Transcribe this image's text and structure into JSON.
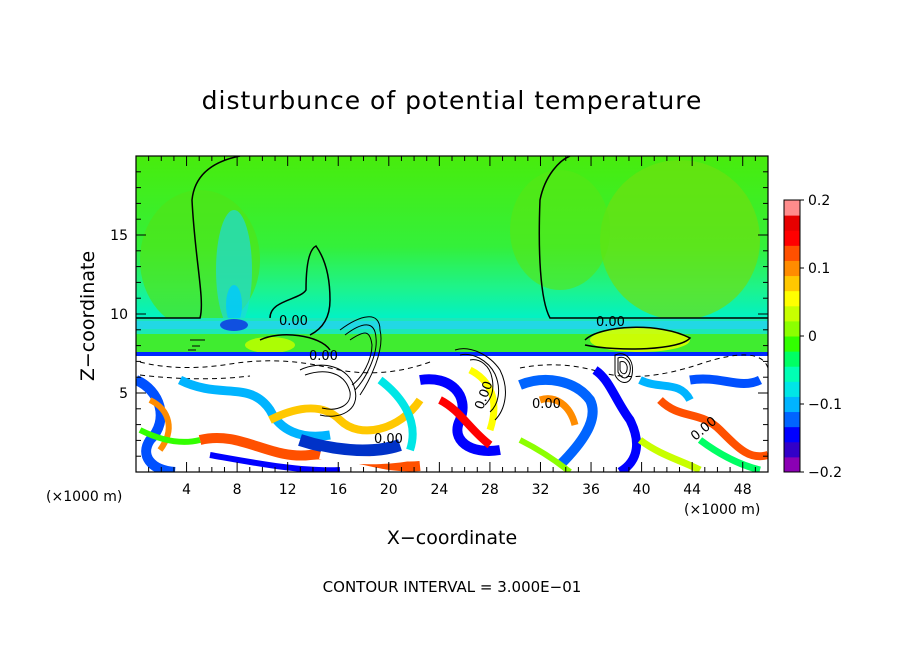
{
  "chart_data": {
    "type": "heatmap",
    "title": "disturbunce of potential temperature",
    "xlabel": "X−coordinate",
    "ylabel": "Z−coordinate",
    "x_unit_label": "(×1000 m)",
    "x_ticks": [
      "4",
      "8",
      "12",
      "16",
      "20",
      "24",
      "28",
      "32",
      "36",
      "40",
      "44",
      "48"
    ],
    "x_tick_values": [
      4,
      8,
      12,
      16,
      20,
      24,
      28,
      32,
      36,
      40,
      44,
      48
    ],
    "y_ticks": [
      "5",
      "10",
      "15"
    ],
    "y_tick_values": [
      5,
      10,
      15
    ],
    "xlim": [
      0,
      50
    ],
    "ylim": [
      0,
      20
    ],
    "colorbar": {
      "ticks": [
        "0.2",
        "0.1",
        "0",
        "−0.1",
        "−0.2"
      ],
      "tick_values": [
        0.2,
        0.1,
        0,
        -0.1,
        -0.2
      ],
      "range": [
        -0.2,
        0.2
      ],
      "colors": [
        "#8b00b4",
        "#3200c8",
        "#0000ff",
        "#0064ff",
        "#00b4ff",
        "#00e6e6",
        "#00ffb4",
        "#00ff64",
        "#32ff00",
        "#8cff00",
        "#c8ff00",
        "#ffff00",
        "#ffc800",
        "#ff8c00",
        "#ff5000",
        "#ff0000",
        "#e60000",
        "#ff8c8c"
      ]
    },
    "contour_labels": [
      {
        "text": "0.00",
        "x": 12.5,
        "z": 9.8
      },
      {
        "text": "0.00",
        "x": 36.7,
        "z": 9.8
      },
      {
        "text": "0.00",
        "x": 13.5,
        "z": 7.2
      },
      {
        "text": "0.00",
        "x": 20.5,
        "z": 2.3
      },
      {
        "text": "0.00",
        "x": 32.2,
        "z": 4.6
      },
      {
        "text": "0.00",
        "x": 27.5,
        "z": 4.6
      },
      {
        "text": "0.00",
        "x": 44.5,
        "z": 2.8
      }
    ],
    "contour_interval_text": "CONTOUR INTERVAL = 3.000E−01"
  }
}
